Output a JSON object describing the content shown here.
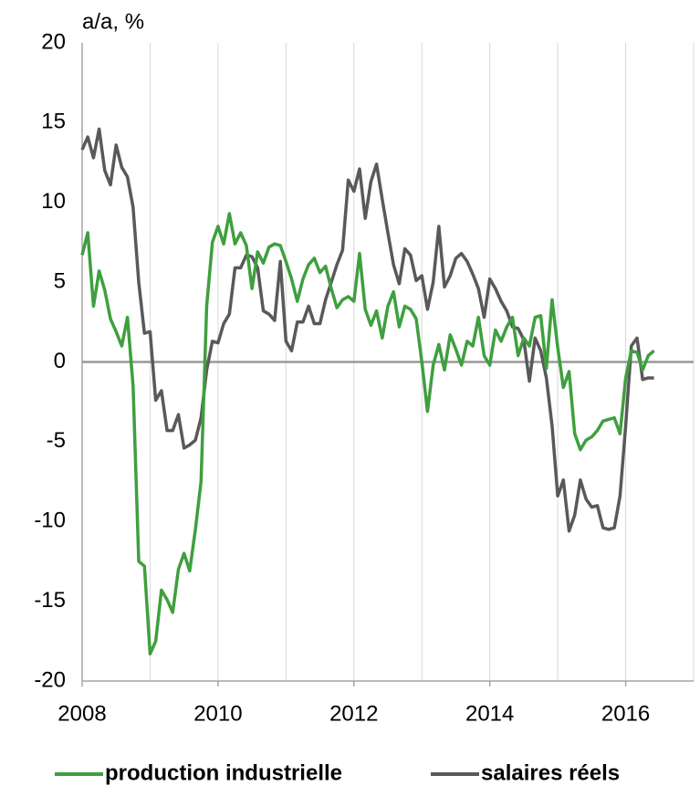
{
  "chart_data": {
    "type": "line",
    "ylabel": "a/a, %",
    "x": [
      2008,
      2008.083,
      2008.167,
      2008.25,
      2008.333,
      2008.417,
      2008.5,
      2008.583,
      2008.667,
      2008.75,
      2008.833,
      2008.917,
      2009,
      2009.083,
      2009.167,
      2009.25,
      2009.333,
      2009.417,
      2009.5,
      2009.583,
      2009.667,
      2009.75,
      2009.833,
      2009.917,
      2010,
      2010.083,
      2010.167,
      2010.25,
      2010.333,
      2010.417,
      2010.5,
      2010.583,
      2010.667,
      2010.75,
      2010.833,
      2010.917,
      2011,
      2011.083,
      2011.167,
      2011.25,
      2011.333,
      2011.417,
      2011.5,
      2011.583,
      2011.667,
      2011.75,
      2011.833,
      2011.917,
      2012,
      2012.083,
      2012.167,
      2012.25,
      2012.333,
      2012.417,
      2012.5,
      2012.583,
      2012.667,
      2012.75,
      2012.833,
      2012.917,
      2013,
      2013.083,
      2013.167,
      2013.25,
      2013.333,
      2013.417,
      2013.5,
      2013.583,
      2013.667,
      2013.75,
      2013.833,
      2013.917,
      2014,
      2014.083,
      2014.167,
      2014.25,
      2014.333,
      2014.417,
      2014.5,
      2014.583,
      2014.667,
      2014.75,
      2014.833,
      2014.917,
      2015,
      2015.083,
      2015.167,
      2015.25,
      2015.333,
      2015.417,
      2015.5,
      2015.583,
      2015.667,
      2015.75,
      2015.833,
      2015.917,
      2016,
      2016.083,
      2016.167,
      2016.25,
      2016.333,
      2016.417
    ],
    "series": [
      {
        "name": "production industrielle",
        "color": "#3f9f3f",
        "values": [
          6.7,
          8.1,
          3.5,
          5.7,
          4.5,
          2.7,
          1.9,
          1.0,
          2.8,
          -1.5,
          -12.5,
          -12.8,
          -18.3,
          -17.5,
          -14.3,
          -14.9,
          -15.7,
          -13.0,
          -12.0,
          -13.1,
          -10.5,
          -7.5,
          3.5,
          7.5,
          8.5,
          7.4,
          9.3,
          7.4,
          8.1,
          7.3,
          4.6,
          6.9,
          6.2,
          7.2,
          7.4,
          7.3,
          6.3,
          5.2,
          3.8,
          5.2,
          6.1,
          6.5,
          5.6,
          6.0,
          4.6,
          3.4,
          3.9,
          4.1,
          3.8,
          6.8,
          3.3,
          2.3,
          3.2,
          1.5,
          3.5,
          4.4,
          2.2,
          3.5,
          3.3,
          2.7,
          0.0,
          -3.1,
          -0.2,
          1.1,
          -0.5,
          1.7,
          0.8,
          -0.2,
          1.3,
          1.0,
          2.8,
          0.4,
          -0.2,
          2.0,
          1.3,
          2.2,
          2.8,
          0.4,
          1.5,
          1.0,
          2.8,
          2.9,
          -0.4,
          3.9,
          0.9,
          -1.6,
          -0.6,
          -4.5,
          -5.5,
          -4.9,
          -4.7,
          -4.3,
          -3.7,
          -3.6,
          -3.5,
          -4.5,
          -1.0,
          0.7,
          0.6,
          -0.5,
          0.4,
          0.7
        ]
      },
      {
        "name": "salaires réels",
        "color": "#595959",
        "values": [
          13.3,
          14.1,
          12.8,
          14.6,
          12.0,
          11.1,
          13.6,
          12.2,
          11.6,
          9.7,
          5.0,
          1.8,
          1.9,
          -2.4,
          -1.8,
          -4.3,
          -4.3,
          -3.3,
          -5.4,
          -5.2,
          -4.9,
          -3.5,
          -0.5,
          1.3,
          1.2,
          2.4,
          3.0,
          5.9,
          5.9,
          6.7,
          6.6,
          5.9,
          3.2,
          3.0,
          2.6,
          6.3,
          1.3,
          0.7,
          2.5,
          2.5,
          3.5,
          2.4,
          2.4,
          3.9,
          5.0,
          6.1,
          7.0,
          11.4,
          10.7,
          12.1,
          9.0,
          11.3,
          12.4,
          10.2,
          8.1,
          6.1,
          4.9,
          7.1,
          6.7,
          5.1,
          5.4,
          3.3,
          5.0,
          8.5,
          4.7,
          5.4,
          6.5,
          6.8,
          6.3,
          5.5,
          4.6,
          2.8,
          5.2,
          4.6,
          3.8,
          3.2,
          2.2,
          2.1,
          1.4,
          -1.2,
          1.5,
          0.7,
          -1.0,
          -4.0,
          -8.4,
          -7.4,
          -10.6,
          -9.6,
          -7.4,
          -8.6,
          -9.1,
          -9.0,
          -10.4,
          -10.5,
          -10.4,
          -8.4,
          -4.0,
          1.0,
          1.5,
          -1.1,
          -1.0,
          -1.0
        ]
      }
    ],
    "xlim": [
      2008,
      2017
    ],
    "xticks": [
      2008,
      2010,
      2012,
      2014,
      2016
    ],
    "xgrid": [
      2009,
      2010,
      2011,
      2012,
      2013,
      2014,
      2015,
      2016,
      2017
    ],
    "ylim": [
      -20,
      20
    ],
    "yticks": [
      -20,
      -15,
      -10,
      -5,
      0,
      5,
      10,
      15,
      20
    ],
    "legend": "bottom"
  }
}
